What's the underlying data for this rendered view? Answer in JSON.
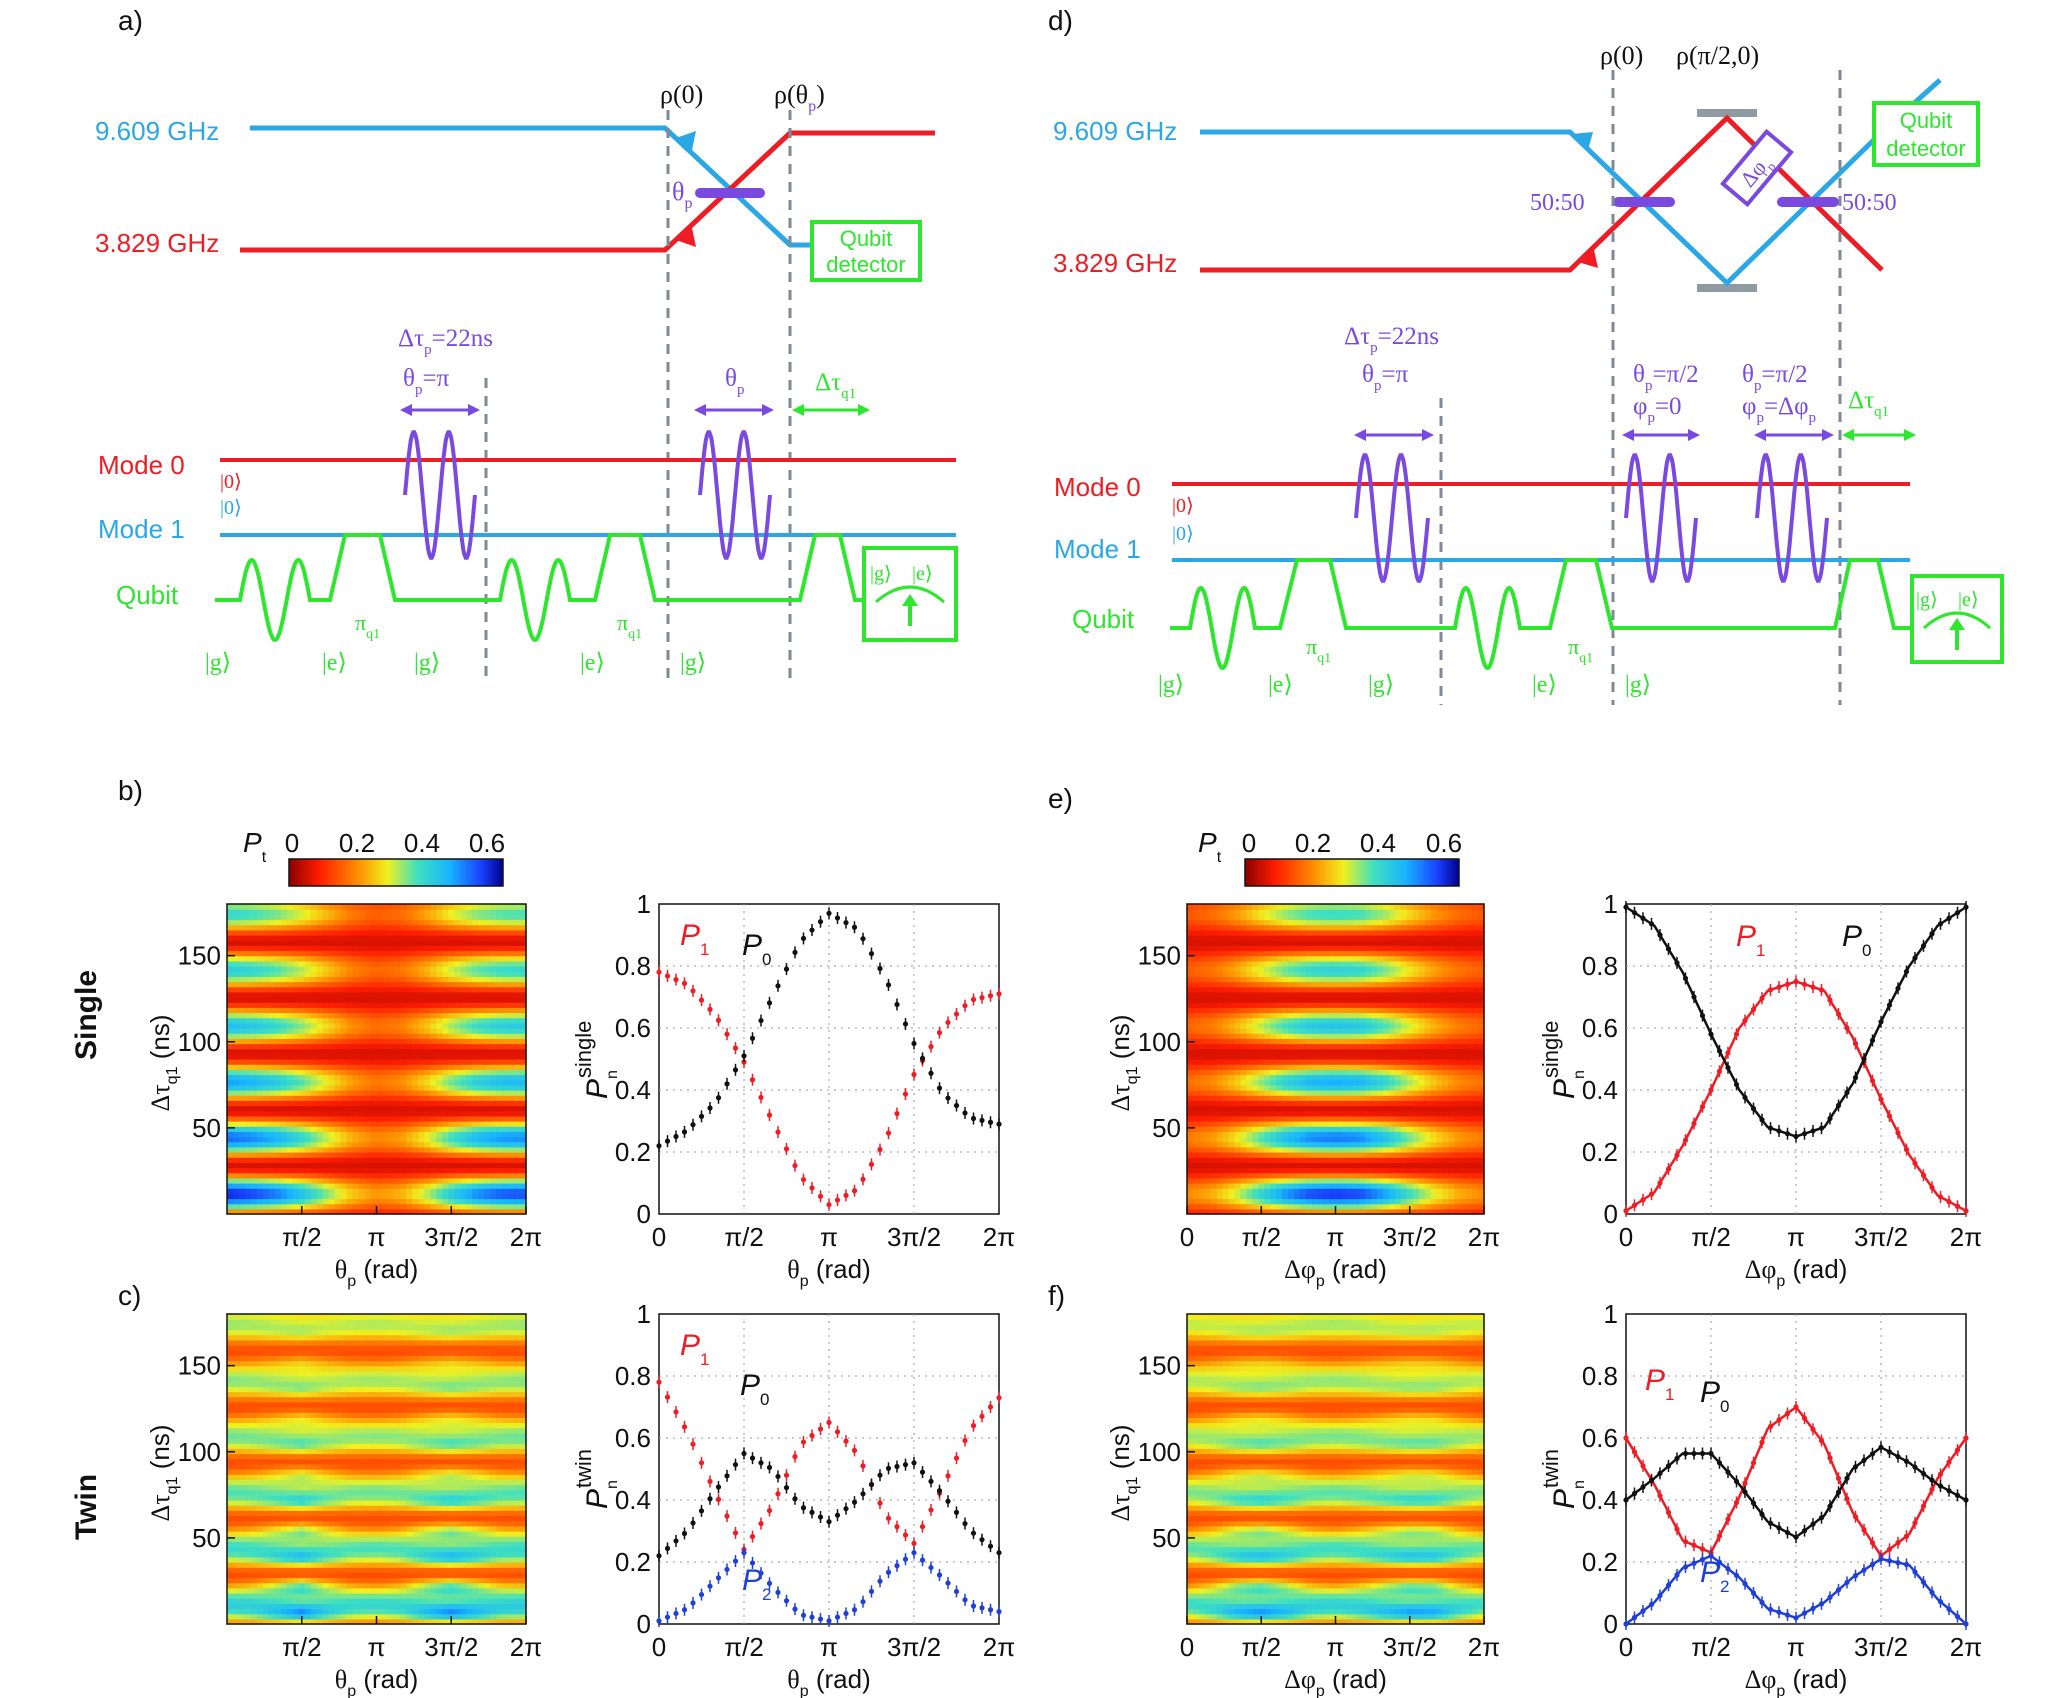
{
  "colors": {
    "mode0": "#ee1c24",
    "mode1": "#2aa7e6",
    "qubit": "#2ee62e",
    "pulse": "#7a4ae0",
    "dash": "#7f8a96",
    "mirror": "#909aa3",
    "black": "#111111",
    "p1": "#ee1c24",
    "p0": "#111111",
    "p2": "#1f3fd6"
  },
  "panels": {
    "a": {
      "label": "a)",
      "freq_hi": "9.609 GHz",
      "freq_lo": "3.829 GHz",
      "rho0": "ρ(0)",
      "rho_theta": "ρ(θ",
      "rho_theta_sub": "p",
      "rho_theta_close": ")",
      "theta": "θ",
      "theta_sub": "p",
      "detector_l1": "Qubit",
      "detector_l2": "detector",
      "dtau_p": "Δτ",
      "dtau_p_sub": "p",
      "dtau_p_val": "=22ns",
      "theta_pi": "θ",
      "theta_pi_sub": "p",
      "theta_pi_val": "=π",
      "theta_p2": "θ",
      "theta_p2_sub": "p",
      "dtau_q1": "Δτ",
      "dtau_q1_sub": "q1",
      "mode0": "Mode 0",
      "mode1": "Mode 1",
      "qubit": "Qubit",
      "ket0_a": "|0⟩",
      "ket0_b": "|0⟩",
      "pi_q1": "π",
      "pi_q1_sub": "q1",
      "ket_g": "|g⟩",
      "ket_e": "|e⟩",
      "meas_g": "|g⟩",
      "meas_e": "|e⟩"
    },
    "d": {
      "label": "d)",
      "freq_hi": "9.609 GHz",
      "freq_lo": "3.829 GHz",
      "rho0": "ρ(0)",
      "rho_half": "ρ(π/2,0)",
      "bs_left": "50:50",
      "bs_right": "50:50",
      "dphi": "Δφ",
      "dphi_sub": "p",
      "detector_l1": "Qubit",
      "detector_l2": "detector",
      "dtau_p": "Δτ",
      "dtau_p_sub": "p",
      "dtau_p_val": "=22ns",
      "theta_pi": "θ",
      "theta_pi_sub": "p",
      "theta_pi_val": "=π",
      "th1": "θ",
      "th1_sub": "p",
      "th1_val": "=π/2",
      "ph1": "φ",
      "ph1_sub": "p",
      "ph1_val": "=0",
      "th2": "θ",
      "th2_sub": "p",
      "th2_val": "=π/2",
      "ph2": "φ",
      "ph2_sub": "p",
      "ph2_val": "=Δφ",
      "ph2_val_sub": "p",
      "dtau_q1": "Δτ",
      "dtau_q1_sub": "q1",
      "mode0": "Mode 0",
      "mode1": "Mode 1",
      "qubit": "Qubit",
      "ket0_a": "|0⟩",
      "ket0_b": "|0⟩",
      "pi_q1": "π",
      "pi_q1_sub": "q1",
      "ket_g": "|g⟩",
      "ket_e": "|e⟩",
      "meas_g": "|g⟩",
      "meas_e": "|e⟩"
    },
    "b": {
      "label": "b)"
    },
    "c": {
      "label": "c)"
    },
    "e": {
      "label": "e)"
    },
    "f": {
      "label": "f)"
    }
  },
  "row_labels": {
    "single": "Single",
    "twin": "Twin"
  },
  "colorbar": {
    "label": "P",
    "label_sub": "t",
    "ticks": [
      "0",
      "0.2",
      "0.4",
      "0.6"
    ]
  },
  "axes": {
    "heat_y_ticks": [
      "50",
      "100",
      "150"
    ],
    "heat_ylabel": "Δτ",
    "heat_ylabel_sub": "q1",
    "heat_ylabel_unit": " (ns)",
    "theta_xticks": [
      "0",
      "π/2",
      "π",
      "3π/2",
      "2π"
    ],
    "theta_xlabel": "θ",
    "theta_xlabel_sub": "p",
    "theta_xlabel_unit": " (rad)",
    "phi_xlabel": "Δφ",
    "phi_xlabel_sub": "p",
    "phi_xlabel_unit": " (rad)",
    "prob_yticks": [
      "0",
      "0.2",
      "0.4",
      "0.6",
      "0.8",
      "1"
    ],
    "ylabel_single": "P",
    "ylabel_single_sub": "n",
    "ylabel_single_sup": "single",
    "ylabel_twin": "P",
    "ylabel_twin_sub": "n",
    "ylabel_twin_sup": "twin",
    "legend_p0": "P",
    "legend_p0_sub": "0",
    "legend_p1": "P",
    "legend_p1_sub": "1",
    "legend_p2": "P",
    "legend_p2_sub": "2"
  },
  "chart_data": [
    {
      "id": "b-heat",
      "type": "heatmap",
      "title": "",
      "xlabel": "θp (rad)",
      "ylabel": "Δτq1 (ns)",
      "xlim": [
        0,
        6.2832
      ],
      "ylim": [
        0,
        180
      ],
      "x_ticks": [
        "π/2",
        "π",
        "3π/2",
        "2π"
      ],
      "y_ticks": [
        50,
        100,
        150
      ],
      "colorbar": {
        "label": "Pt",
        "range": [
          0,
          0.65
        ]
      },
      "fringe_period_ns": 32.5
    },
    {
      "id": "b-curves",
      "type": "scatter",
      "xlabel": "θp (rad)",
      "ylabel": "Pn single",
      "xlim": [
        0,
        6.2832
      ],
      "ylim": [
        0,
        1
      ],
      "x_ticks": [
        "0",
        "π/2",
        "π",
        "3π/2",
        "2π"
      ],
      "y_ticks": [
        0,
        0.2,
        0.4,
        0.6,
        0.8,
        1
      ],
      "x": [
        0,
        0.5236,
        1.0472,
        1.5708,
        2.0944,
        2.618,
        3.1416,
        3.6652,
        4.1888,
        4.7124,
        5.236,
        5.7596,
        6.2832
      ],
      "series": [
        {
          "name": "P1",
          "values": [
            0.78,
            0.74,
            0.64,
            0.49,
            0.3,
            0.12,
            0.03,
            0.08,
            0.24,
            0.45,
            0.6,
            0.69,
            0.71
          ]
        },
        {
          "name": "P0",
          "values": [
            0.22,
            0.27,
            0.36,
            0.51,
            0.7,
            0.88,
            0.97,
            0.92,
            0.76,
            0.55,
            0.39,
            0.31,
            0.29
          ]
        }
      ]
    },
    {
      "id": "c-heat",
      "type": "heatmap",
      "xlabel": "θp (rad)",
      "ylabel": "Δτq1 (ns)",
      "xlim": [
        0,
        6.2832
      ],
      "ylim": [
        0,
        180
      ],
      "x_ticks": [
        "π/2",
        "π",
        "3π/2",
        "2π"
      ],
      "y_ticks": [
        50,
        100,
        150
      ],
      "colorbar": {
        "label": "Pt",
        "range": [
          0,
          0.65
        ]
      }
    },
    {
      "id": "c-curves",
      "type": "scatter",
      "xlabel": "θp (rad)",
      "ylabel": "Pn twin",
      "xlim": [
        0,
        6.2832
      ],
      "ylim": [
        0,
        1
      ],
      "x_ticks": [
        "0",
        "π/2",
        "π",
        "3π/2",
        "2π"
      ],
      "y_ticks": [
        0,
        0.2,
        0.4,
        0.6,
        0.8,
        1
      ],
      "x": [
        0,
        0.5236,
        1.0472,
        1.5708,
        2.0944,
        2.618,
        3.1416,
        3.6652,
        4.1888,
        4.7124,
        5.236,
        5.7596,
        6.2832
      ],
      "series": [
        {
          "name": "P1",
          "values": [
            0.78,
            0.62,
            0.42,
            0.24,
            0.38,
            0.58,
            0.65,
            0.55,
            0.35,
            0.26,
            0.44,
            0.63,
            0.73
          ]
        },
        {
          "name": "P0",
          "values": [
            0.22,
            0.3,
            0.43,
            0.55,
            0.5,
            0.38,
            0.33,
            0.4,
            0.5,
            0.52,
            0.42,
            0.3,
            0.23
          ]
        },
        {
          "name": "P2",
          "values": [
            0.01,
            0.05,
            0.14,
            0.23,
            0.12,
            0.03,
            0.01,
            0.05,
            0.16,
            0.23,
            0.15,
            0.06,
            0.04
          ]
        }
      ]
    },
    {
      "id": "e-heat",
      "type": "heatmap",
      "xlabel": "Δφp (rad)",
      "ylabel": "Δτq1 (ns)",
      "xlim": [
        0,
        6.2832
      ],
      "ylim": [
        0,
        180
      ],
      "x_ticks": [
        "0",
        "π/2",
        "π",
        "3π/2",
        "2π"
      ],
      "y_ticks": [
        50,
        100,
        150
      ],
      "colorbar": {
        "label": "Pt",
        "range": [
          0,
          0.65
        ]
      }
    },
    {
      "id": "e-curves",
      "type": "scatter",
      "xlabel": "Δφp (rad)",
      "ylabel": "Pn single",
      "xlim": [
        0,
        6.2832
      ],
      "ylim": [
        0,
        1
      ],
      "x_ticks": [
        "0",
        "π/2",
        "π",
        "3π/2",
        "2π"
      ],
      "y_ticks": [
        0,
        0.2,
        0.4,
        0.6,
        0.8,
        1
      ],
      "x": [
        0,
        0.5236,
        1.0472,
        1.5708,
        2.0944,
        2.618,
        3.1416,
        3.6652,
        4.1888,
        4.7124,
        5.236,
        5.7596,
        6.2832
      ],
      "series": [
        {
          "name": "P1",
          "values": [
            0.01,
            0.07,
            0.22,
            0.4,
            0.6,
            0.72,
            0.75,
            0.72,
            0.57,
            0.37,
            0.19,
            0.06,
            0.01
          ]
        },
        {
          "name": "P0",
          "values": [
            0.99,
            0.93,
            0.78,
            0.58,
            0.4,
            0.28,
            0.25,
            0.28,
            0.42,
            0.62,
            0.8,
            0.93,
            0.99
          ]
        }
      ]
    },
    {
      "id": "f-heat",
      "type": "heatmap",
      "xlabel": "Δφp (rad)",
      "ylabel": "Δτq1 (ns)",
      "xlim": [
        0,
        6.2832
      ],
      "ylim": [
        0,
        180
      ],
      "x_ticks": [
        "0",
        "π/2",
        "π",
        "3π/2",
        "2π"
      ],
      "y_ticks": [
        50,
        100,
        150
      ],
      "colorbar": {
        "label": "Pt",
        "range": [
          0,
          0.65
        ]
      }
    },
    {
      "id": "f-curves",
      "type": "scatter",
      "xlabel": "Δφp (rad)",
      "ylabel": "Pn twin",
      "xlim": [
        0,
        6.2832
      ],
      "ylim": [
        0,
        1
      ],
      "x_ticks": [
        "0",
        "π/2",
        "π",
        "3π/2",
        "2π"
      ],
      "y_ticks": [
        0,
        0.2,
        0.4,
        0.6,
        0.8,
        1
      ],
      "x": [
        0,
        0.5236,
        1.0472,
        1.5708,
        2.0944,
        2.618,
        3.1416,
        3.6652,
        4.1888,
        4.7124,
        5.236,
        5.7596,
        6.2832
      ],
      "series": [
        {
          "name": "P1",
          "values": [
            0.6,
            0.45,
            0.27,
            0.23,
            0.41,
            0.63,
            0.7,
            0.58,
            0.36,
            0.22,
            0.29,
            0.47,
            0.6
          ]
        },
        {
          "name": "P0",
          "values": [
            0.4,
            0.47,
            0.55,
            0.55,
            0.45,
            0.33,
            0.28,
            0.35,
            0.5,
            0.57,
            0.52,
            0.45,
            0.4
          ]
        },
        {
          "name": "P2",
          "values": [
            0.0,
            0.07,
            0.18,
            0.22,
            0.15,
            0.05,
            0.02,
            0.07,
            0.15,
            0.21,
            0.19,
            0.08,
            0.0
          ]
        }
      ]
    }
  ]
}
